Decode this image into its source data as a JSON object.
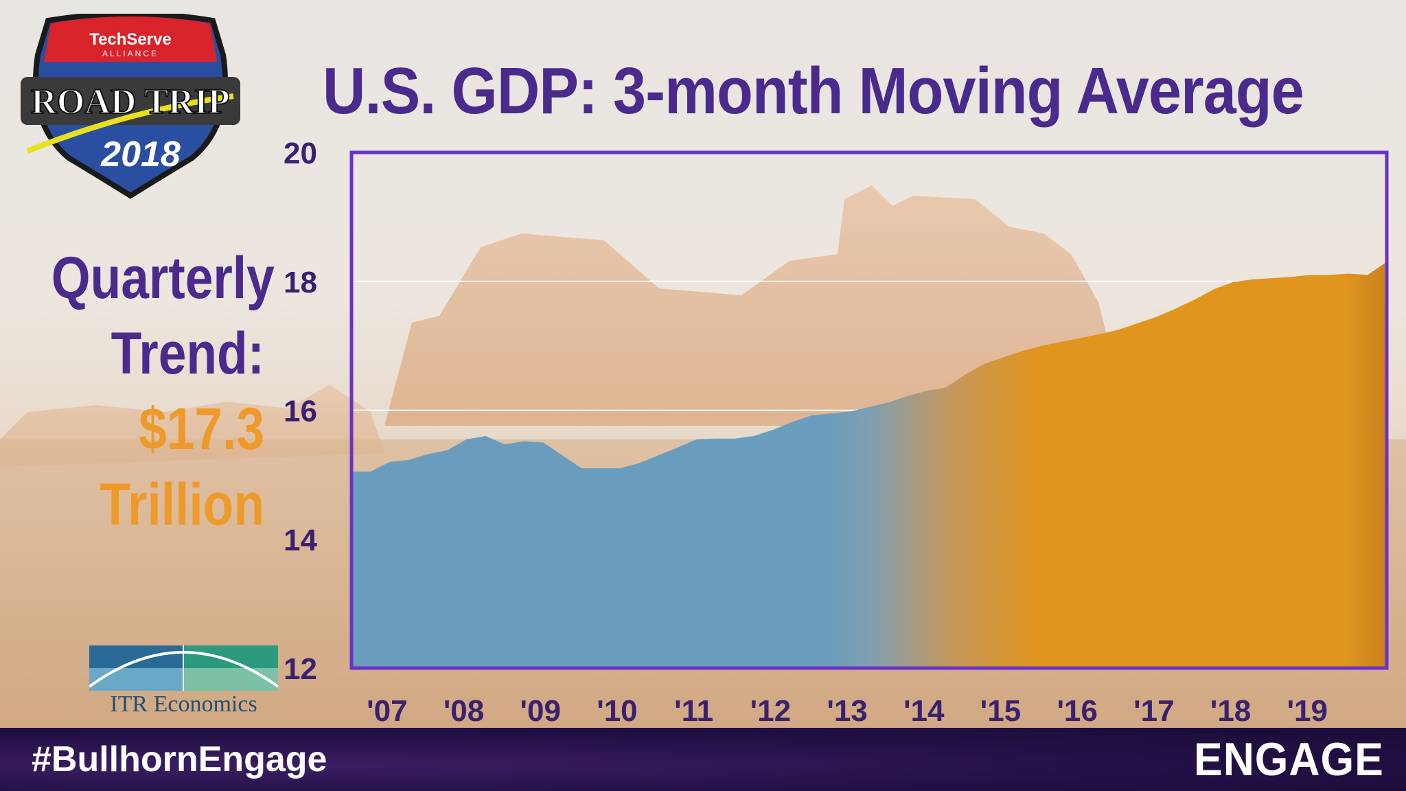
{
  "slide": {
    "title": "U.S. GDP: 3-month Moving Average",
    "trend_label_1": "Quarterly",
    "trend_label_2": "Trend:",
    "trend_value": "$17.3",
    "trend_unit": "Trillion",
    "hashtag": "#BullhornEngage",
    "engage_logo": "ENGAGE",
    "roadtrip_logo": {
      "brand": "TechServe",
      "sub": "ALLIANCE",
      "name": "ROAD TRIP",
      "year": "2018"
    },
    "itr_logo": {
      "name": "ITR Economics"
    },
    "colors": {
      "title": "#4a2a8c",
      "accent": "#ee9a2a",
      "history_fill": "#6a9dbd",
      "forecast_fill": "#e0951f",
      "frame": "#6a32c8"
    }
  },
  "chart_data": {
    "type": "area",
    "title": "U.S. GDP: 3-month Moving Average",
    "ylim": [
      12,
      20
    ],
    "yticks": [
      "20",
      "18",
      "16",
      "14",
      "12"
    ],
    "xticks": [
      "'07",
      "'08",
      "'09",
      "'10",
      "'11",
      "'12",
      "'13",
      "'14",
      "'15",
      "'16",
      "'17",
      "'18",
      "'19"
    ],
    "xlim": [
      2007.0,
      2020.5
    ],
    "grid": true,
    "series": [
      {
        "values": [
          [
            2007.0,
            15.05
          ],
          [
            2007.25,
            15.05
          ],
          [
            2007.5,
            15.2
          ],
          [
            2007.75,
            15.23
          ],
          [
            2008.0,
            15.32
          ],
          [
            2008.25,
            15.38
          ],
          [
            2008.5,
            15.55
          ],
          [
            2008.75,
            15.6
          ],
          [
            2009.0,
            15.47
          ],
          [
            2009.25,
            15.52
          ],
          [
            2009.5,
            15.5
          ],
          [
            2009.75,
            15.3
          ],
          [
            2010.0,
            15.1
          ],
          [
            2010.25,
            15.1
          ],
          [
            2010.5,
            15.1
          ],
          [
            2010.75,
            15.18
          ],
          [
            2011.0,
            15.3
          ],
          [
            2011.25,
            15.42
          ],
          [
            2011.5,
            15.55
          ],
          [
            2011.75,
            15.56
          ],
          [
            2012.0,
            15.56
          ],
          [
            2012.25,
            15.6
          ],
          [
            2012.5,
            15.7
          ],
          [
            2012.75,
            15.82
          ],
          [
            2013.0,
            15.92
          ],
          [
            2013.25,
            15.95
          ],
          [
            2013.5,
            15.98
          ],
          [
            2013.75,
            16.05
          ],
          [
            2014.0,
            16.12
          ],
          [
            2014.25,
            16.22
          ],
          [
            2014.5,
            16.3
          ],
          [
            2014.75,
            16.35
          ],
          [
            2015.0,
            16.55
          ],
          [
            2015.25,
            16.72
          ],
          [
            2015.5,
            16.82
          ],
          [
            2015.75,
            16.92
          ],
          [
            2016.0,
            17.0
          ],
          [
            2016.25,
            17.06
          ],
          [
            2016.5,
            17.12
          ],
          [
            2016.75,
            17.18
          ],
          [
            2017.0,
            17.25
          ],
          [
            2017.25,
            17.35
          ],
          [
            2017.5,
            17.45
          ],
          [
            2017.75,
            17.58
          ],
          [
            2018.0,
            17.72
          ],
          [
            2018.25,
            17.88
          ],
          [
            2018.5,
            17.99
          ],
          [
            2018.75,
            18.03
          ],
          [
            2019.0,
            18.05
          ],
          [
            2019.25,
            18.07
          ],
          [
            2019.5,
            18.1
          ],
          [
            2019.75,
            18.1
          ],
          [
            2020.0,
            18.12
          ],
          [
            2020.25,
            18.1
          ],
          [
            2020.5,
            18.3
          ]
        ]
      }
    ]
  }
}
